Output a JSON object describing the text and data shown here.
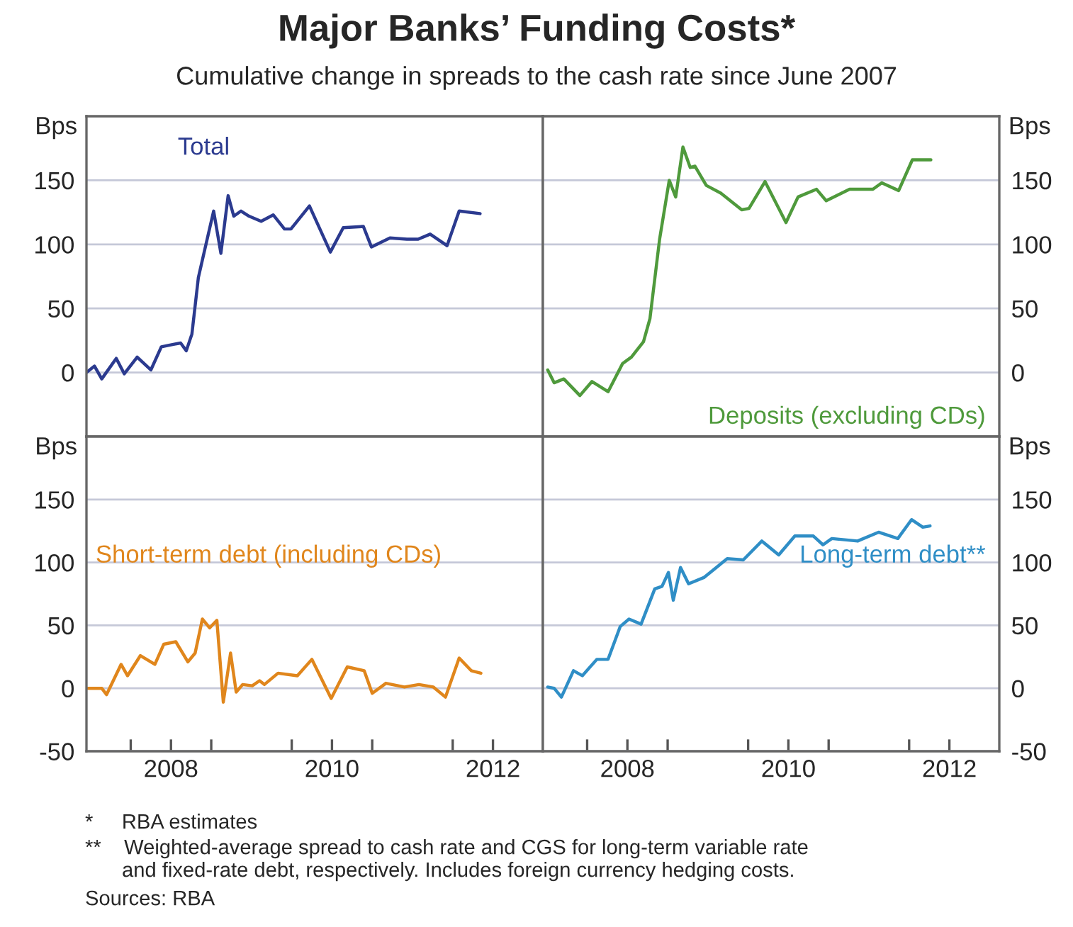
{
  "chart_data": [
    {
      "type": "line",
      "title": "Major Banks’ Funding Costs*",
      "subtitle": "Cumulative change in spreads to the cash rate since June 2007",
      "ylabel": "Bps",
      "xlim": [
        2007.45,
        2013.12
      ],
      "ylim": [
        -50,
        200
      ],
      "yticks": [
        0,
        50,
        100,
        150
      ],
      "grid": "y",
      "tick_labels": "y",
      "legend": false,
      "series": [
        {
          "name": "Total",
          "color": "#2b3a8f",
          "x": [
            2007.45,
            2007.55,
            2007.64,
            2007.82,
            2007.92,
            2008.08,
            2008.25,
            2008.38,
            2008.53,
            2008.62,
            2008.69,
            2008.76,
            2008.84,
            2008.92,
            2009.03,
            2009.12,
            2009.21,
            2009.28,
            2009.37,
            2009.47,
            2009.62,
            2009.77,
            2009.91,
            2009.99,
            2010.22,
            2010.48,
            2010.64,
            2010.89,
            2010.99,
            2011.22,
            2011.43,
            2011.57,
            2011.72,
            2011.93,
            2012.08,
            2012.34
          ],
          "values": [
            0,
            5,
            -5,
            11,
            -1,
            12,
            2,
            20,
            22,
            23,
            17,
            30,
            74,
            96,
            126,
            93,
            138,
            122,
            126,
            122,
            118,
            123,
            112,
            112,
            130,
            94,
            113,
            114,
            98,
            105,
            104,
            104,
            108,
            99,
            126,
            124
          ]
        }
      ]
    },
    {
      "type": "line",
      "ylabel": "Bps",
      "xlim": [
        2007.45,
        2013.12
      ],
      "ylim": [
        -50,
        200
      ],
      "yticks": [
        0,
        50,
        100,
        150
      ],
      "grid": "y",
      "tick_labels": "y",
      "legend": false,
      "series": [
        {
          "name": "Deposits (excluding CDs)",
          "color": "#4f9a3c",
          "x": [
            2007.51,
            2007.59,
            2007.71,
            2007.91,
            2008.06,
            2008.26,
            2008.44,
            2008.55,
            2008.7,
            2008.78,
            2008.9,
            2009.02,
            2009.1,
            2009.19,
            2009.28,
            2009.34,
            2009.48,
            2009.66,
            2009.92,
            2010.01,
            2010.21,
            2010.47,
            2010.62,
            2010.85,
            2010.97,
            2011.26,
            2011.55,
            2011.66,
            2011.87,
            2012.04,
            2012.27
          ],
          "values": [
            2,
            -8,
            -5,
            -18,
            -7,
            -15,
            7,
            12,
            24,
            42,
            104,
            150,
            137,
            176,
            160,
            161,
            146,
            140,
            127,
            128,
            149,
            117,
            137,
            143,
            134,
            143,
            143,
            148,
            142,
            166,
            166
          ]
        }
      ]
    },
    {
      "type": "line",
      "ylabel": "Bps",
      "xlim": [
        2007.45,
        2013.12
      ],
      "ylim": [
        -50,
        200
      ],
      "yticks": [
        -50,
        0,
        50,
        100,
        150
      ],
      "xticks": [
        {
          "value": 2008,
          "label": null
        },
        {
          "value": 2008.5,
          "label": "2008"
        },
        {
          "value": 2009,
          "label": null
        },
        {
          "value": 2010,
          "label": null
        },
        {
          "value": 2010.5,
          "label": "2010"
        },
        {
          "value": 2011,
          "label": null
        },
        {
          "value": 2012,
          "label": null
        },
        {
          "value": 2012.5,
          "label": "2012"
        }
      ],
      "grid": "y",
      "legend": false,
      "series": [
        {
          "name": "Short-term debt (including CDs)",
          "color": "#e0861c",
          "x": [
            2007.47,
            2007.64,
            2007.7,
            2007.88,
            2007.96,
            2008.12,
            2008.3,
            2008.41,
            2008.56,
            2008.71,
            2008.8,
            2008.89,
            2008.98,
            2009.07,
            2009.15,
            2009.24,
            2009.31,
            2009.39,
            2009.51,
            2009.6,
            2009.66,
            2009.83,
            2010.07,
            2010.25,
            2010.49,
            2010.69,
            2010.9,
            2011.0,
            2011.17,
            2011.4,
            2011.58,
            2011.76,
            2011.91,
            2012.08,
            2012.23,
            2012.35
          ],
          "values": [
            0,
            0,
            -5,
            19,
            10,
            26,
            19,
            35,
            37,
            21,
            28,
            55,
            48,
            54,
            -11,
            28,
            -3,
            3,
            2,
            6,
            3,
            12,
            10,
            23,
            -8,
            17,
            14,
            -4,
            4,
            1,
            3,
            1,
            -7,
            24,
            14,
            12
          ]
        }
      ]
    },
    {
      "type": "line",
      "ylabel": "Bps",
      "xlim": [
        2007.45,
        2013.12
      ],
      "ylim": [
        -50,
        200
      ],
      "yticks": [
        -50,
        0,
        50,
        100,
        150
      ],
      "xticks": [
        {
          "value": 2008,
          "label": null
        },
        {
          "value": 2008.5,
          "label": "2008"
        },
        {
          "value": 2009,
          "label": null
        },
        {
          "value": 2010,
          "label": null
        },
        {
          "value": 2010.5,
          "label": "2010"
        },
        {
          "value": 2011,
          "label": null
        },
        {
          "value": 2012,
          "label": null
        },
        {
          "value": 2012.5,
          "label": "2012"
        }
      ],
      "grid": "y",
      "legend": false,
      "annotations": [
        "*     RBA estimates",
        "**    Weighted-average spread to cash rate and CGS for long-term variable rate\nand fixed-rate debt, respectively. Includes foreign currency hedging costs.",
        "Sources: RBA"
      ],
      "series": [
        {
          "name": "Long-term debt**",
          "color": "#2f8ec6",
          "x": [
            2007.51,
            2007.59,
            2007.68,
            2007.83,
            2007.94,
            2008.12,
            2008.26,
            2008.41,
            2008.52,
            2008.67,
            2008.84,
            2008.93,
            2009.01,
            2009.07,
            2009.16,
            2009.26,
            2009.45,
            2009.74,
            2009.94,
            2010.17,
            2010.38,
            2010.58,
            2010.81,
            2010.93,
            2011.04,
            2011.36,
            2011.62,
            2011.86,
            2012.03,
            2012.17,
            2012.26
          ],
          "values": [
            1,
            0,
            -7,
            14,
            10,
            23,
            23,
            49,
            55,
            51,
            79,
            81,
            92,
            70,
            96,
            83,
            88,
            103,
            102,
            117,
            106,
            121,
            121,
            114,
            119,
            117,
            124,
            119,
            134,
            128,
            129
          ]
        }
      ]
    }
  ]
}
